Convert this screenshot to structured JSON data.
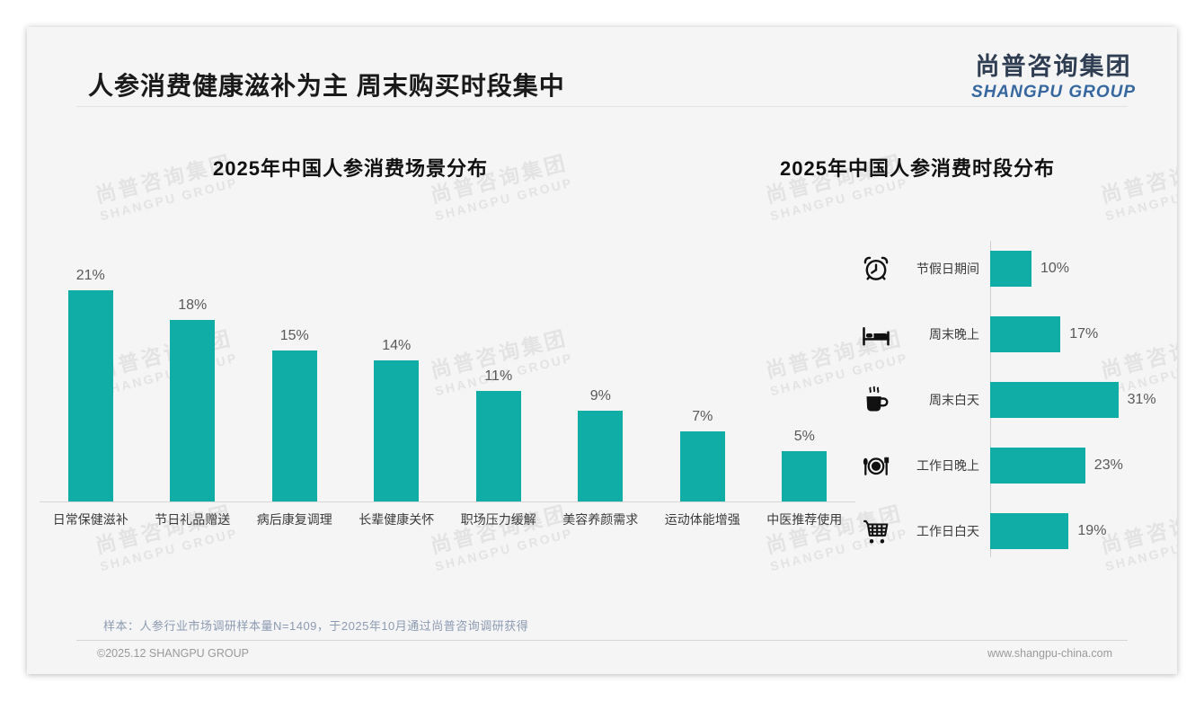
{
  "header": {
    "title": "人参消费健康滋补为主 周末购买时段集中",
    "logo_cn": "尚普咨询集团",
    "logo_en": "SHANGPU GROUP"
  },
  "chart_data": [
    {
      "type": "bar",
      "orientation": "vertical",
      "title": "2025年中国人参消费场景分布",
      "categories": [
        "日常保健滋补",
        "节日礼品赠送",
        "病后康复调理",
        "长辈健康关怀",
        "职场压力缓解",
        "美容养颜需求",
        "运动体能增强",
        "中医推荐使用"
      ],
      "values": [
        21,
        18,
        15,
        14,
        11,
        9,
        7,
        5
      ],
      "value_labels": [
        "21%",
        "18%",
        "15%",
        "14%",
        "11%",
        "9%",
        "7%",
        "5%"
      ],
      "unit": "%",
      "ylim": [
        0,
        24
      ],
      "grid": false,
      "bar_color": "#10ada6"
    },
    {
      "type": "bar",
      "orientation": "horizontal",
      "title": "2025年中国人参消费时段分布",
      "categories": [
        "节假日期间",
        "周末晚上",
        "周末白天",
        "工作日晚上",
        "工作日白天"
      ],
      "values": [
        10,
        17,
        31,
        23,
        19
      ],
      "value_labels": [
        "10%",
        "17%",
        "31%",
        "23%",
        "19%"
      ],
      "icons": [
        "alarm-clock-icon",
        "bed-icon",
        "coffee-icon",
        "dining-icon",
        "shopping-cart-icon"
      ],
      "unit": "%",
      "xlim": [
        0,
        33
      ],
      "grid": false,
      "bar_color": "#10ada6"
    }
  ],
  "footnote": "样本：人参行业市场调研样本量N=1409，于2025年10月通过尚普咨询调研获得",
  "footer": {
    "copyright": "©2025.12 SHANGPU GROUP",
    "website": "www.shangpu-china.com"
  },
  "watermark": {
    "line1": "尚普咨询集团",
    "line2": "SHANGPU GROUP"
  },
  "colors": {
    "accent_teal": "#10ada6",
    "logo_navy": "#2f3e52",
    "logo_blue": "#36689f",
    "slide_background": "#f5f5f6"
  }
}
